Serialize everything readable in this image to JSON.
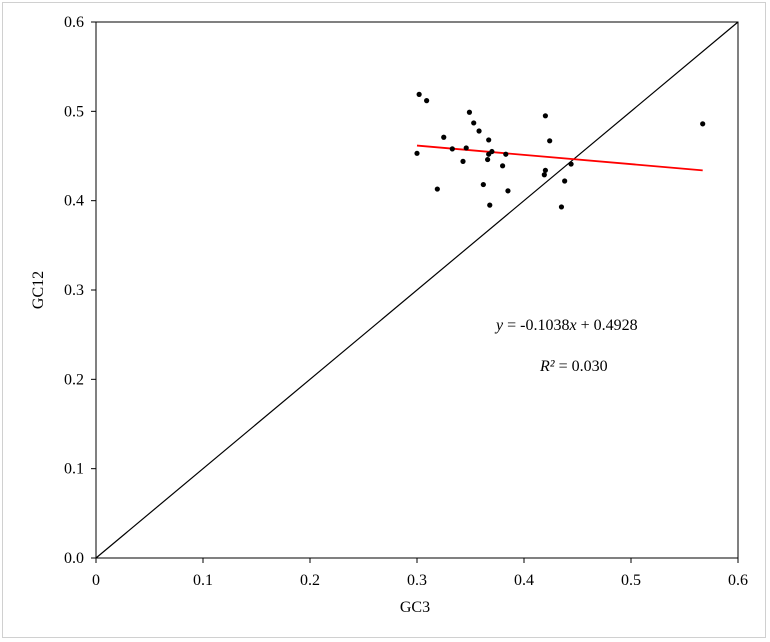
{
  "chart_data": {
    "type": "scatter",
    "xlabel": "GC3",
    "ylabel": "GC12",
    "xlim": [
      0,
      0.6
    ],
    "ylim": [
      0,
      0.6
    ],
    "x_ticks": [
      "0",
      "0.1",
      "0.2",
      "0.3",
      "0.4",
      "0.5",
      "0.6"
    ],
    "y_ticks": [
      "0.0",
      "0.1",
      "0.2",
      "0.3",
      "0.4",
      "0.5",
      "0.6"
    ],
    "grid": false,
    "points": [
      {
        "x": 0.3,
        "y": 0.453
      },
      {
        "x": 0.302,
        "y": 0.519
      },
      {
        "x": 0.309,
        "y": 0.512
      },
      {
        "x": 0.319,
        "y": 0.413
      },
      {
        "x": 0.325,
        "y": 0.471
      },
      {
        "x": 0.333,
        "y": 0.458
      },
      {
        "x": 0.343,
        "y": 0.444
      },
      {
        "x": 0.346,
        "y": 0.459
      },
      {
        "x": 0.349,
        "y": 0.499
      },
      {
        "x": 0.353,
        "y": 0.487
      },
      {
        "x": 0.358,
        "y": 0.478
      },
      {
        "x": 0.362,
        "y": 0.418
      },
      {
        "x": 0.366,
        "y": 0.446
      },
      {
        "x": 0.367,
        "y": 0.468
      },
      {
        "x": 0.367,
        "y": 0.452
      },
      {
        "x": 0.368,
        "y": 0.395
      },
      {
        "x": 0.37,
        "y": 0.455
      },
      {
        "x": 0.38,
        "y": 0.439
      },
      {
        "x": 0.383,
        "y": 0.452
      },
      {
        "x": 0.385,
        "y": 0.411
      },
      {
        "x": 0.419,
        "y": 0.429
      },
      {
        "x": 0.42,
        "y": 0.434
      },
      {
        "x": 0.42,
        "y": 0.495
      },
      {
        "x": 0.424,
        "y": 0.467
      },
      {
        "x": 0.435,
        "y": 0.393
      },
      {
        "x": 0.438,
        "y": 0.422
      },
      {
        "x": 0.444,
        "y": 0.441
      },
      {
        "x": 0.567,
        "y": 0.486
      }
    ],
    "diagonal": {
      "from": [
        0,
        0
      ],
      "to": [
        0.6,
        0.6
      ],
      "color": "#000000"
    },
    "regression": {
      "slope": -0.1038,
      "intercept": 0.4928,
      "x_range": [
        0.3,
        0.567
      ],
      "color": "#ff0000",
      "equation_y": "y",
      "equation_eq": " = -0.1038",
      "equation_x": "x",
      "equation_rest": " + 0.4928",
      "r2_label": "R²",
      "r2_value": " = 0.030"
    },
    "point_color": "#000000"
  }
}
